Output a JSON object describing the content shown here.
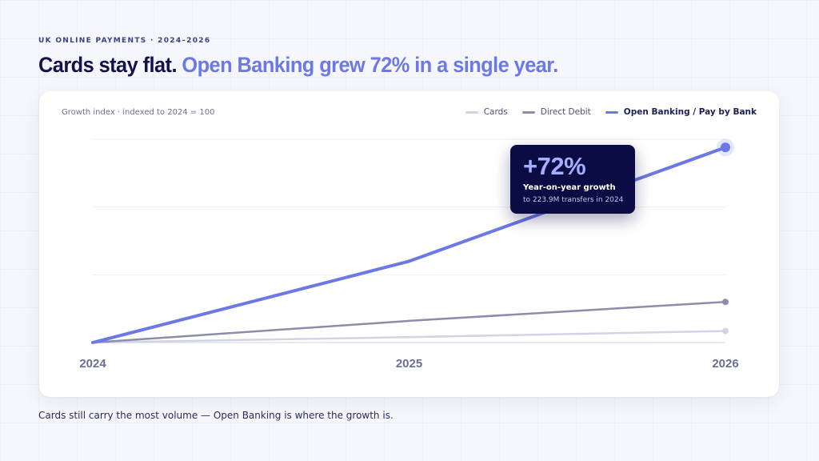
{
  "header": {
    "eyebrow": "UK ONLINE PAYMENTS · 2024–2026",
    "headline_lead": "Cards stay flat.",
    "headline_accent": "Open Banking grew 72% in a single year."
  },
  "callout": {
    "value": "+72%",
    "title": "Year-on-year growth",
    "subtitle": "to 223.9M transfers in 2024"
  },
  "caption": "Cards still carry the most volume — Open Banking is where the growth is.",
  "colors": {
    "cards": "#d2d3e3",
    "direct_debit": "#8c8cab",
    "open_banking": "#6b78e6",
    "accent": "#6b78e6",
    "callout_bg": "#0c0c45"
  },
  "chart_data": {
    "type": "line",
    "title": "",
    "ylabel": "Growth index · indexed to 2024 = 100",
    "xlabel": "",
    "x": [
      "2024",
      "2025",
      "2026"
    ],
    "ylim": [
      100,
      400
    ],
    "grid": true,
    "legend_position": "top-right",
    "series": [
      {
        "name": "Cards",
        "values": [
          100,
          108,
          117
        ],
        "color": "#d2d3e3",
        "end_marker": true
      },
      {
        "name": "Direct Debit",
        "values": [
          100,
          132,
          160
        ],
        "color": "#8c8cab",
        "end_marker": true
      },
      {
        "name": "Open Banking / Pay by Bank",
        "values": [
          100,
          220,
          388
        ],
        "color": "#6b78e6",
        "end_marker": true,
        "highlight": true
      }
    ]
  }
}
